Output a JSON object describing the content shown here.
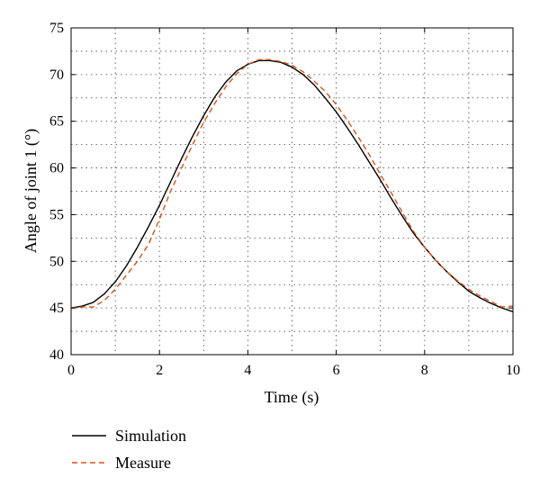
{
  "chart_data": {
    "type": "line",
    "title": "",
    "xlabel": "Time (s)",
    "ylabel": "Angle of joint 1 (°)",
    "xlim": [
      0,
      10
    ],
    "ylim": [
      40,
      75
    ],
    "xticks": [
      "0",
      "2",
      "4",
      "6",
      "8",
      "10"
    ],
    "yticks": [
      "40",
      "45",
      "50",
      "55",
      "60",
      "65",
      "70",
      "75"
    ],
    "grid": true,
    "legend_position": "bottom-left",
    "series": [
      {
        "name": "Simulation",
        "color": "#000000",
        "style": "solid",
        "x": [
          0,
          0.25,
          0.5,
          0.75,
          1.0,
          1.25,
          1.5,
          1.75,
          2.0,
          2.25,
          2.5,
          2.75,
          3.0,
          3.25,
          3.5,
          3.75,
          4.0,
          4.25,
          4.5,
          4.75,
          5.0,
          5.25,
          5.5,
          5.75,
          6.0,
          6.25,
          6.5,
          6.75,
          7.0,
          7.25,
          7.5,
          7.75,
          8.0,
          8.25,
          8.5,
          8.75,
          9.0,
          9.25,
          9.5,
          9.75,
          10.0
        ],
        "y": [
          45.0,
          45.2,
          45.6,
          46.5,
          47.8,
          49.5,
          51.5,
          53.7,
          56.0,
          58.5,
          61.0,
          63.4,
          65.6,
          67.6,
          69.2,
          70.4,
          71.1,
          71.5,
          71.5,
          71.3,
          70.8,
          70.0,
          68.9,
          67.5,
          66.0,
          64.3,
          62.5,
          60.6,
          58.7,
          56.7,
          54.8,
          53.0,
          51.5,
          50.1,
          48.9,
          47.8,
          46.8,
          46.1,
          45.5,
          45.0,
          44.6
        ]
      },
      {
        "name": "Measure",
        "color": "#d95319",
        "style": "dashed",
        "x": [
          0,
          0.25,
          0.5,
          0.75,
          1.0,
          1.25,
          1.5,
          1.75,
          2.0,
          2.25,
          2.5,
          2.75,
          3.0,
          3.25,
          3.5,
          3.75,
          4.0,
          4.25,
          4.5,
          4.75,
          5.0,
          5.25,
          5.5,
          5.75,
          6.0,
          6.25,
          6.5,
          6.75,
          7.0,
          7.25,
          7.5,
          7.75,
          8.0,
          8.25,
          8.5,
          8.75,
          9.0,
          9.25,
          9.5,
          9.75,
          10.0
        ],
        "y": [
          45.0,
          45.1,
          45.1,
          45.8,
          47.0,
          48.5,
          50.0,
          51.8,
          54.5,
          57.5,
          60.0,
          62.5,
          64.9,
          66.9,
          68.7,
          70.1,
          71.1,
          71.6,
          71.6,
          71.4,
          71.0,
          70.3,
          69.3,
          68.2,
          66.8,
          65.1,
          63.3,
          61.4,
          59.3,
          57.3,
          55.2,
          53.2,
          51.5,
          50.1,
          48.9,
          47.9,
          47.0,
          46.3,
          45.7,
          45.1,
          45.2
        ]
      }
    ]
  }
}
